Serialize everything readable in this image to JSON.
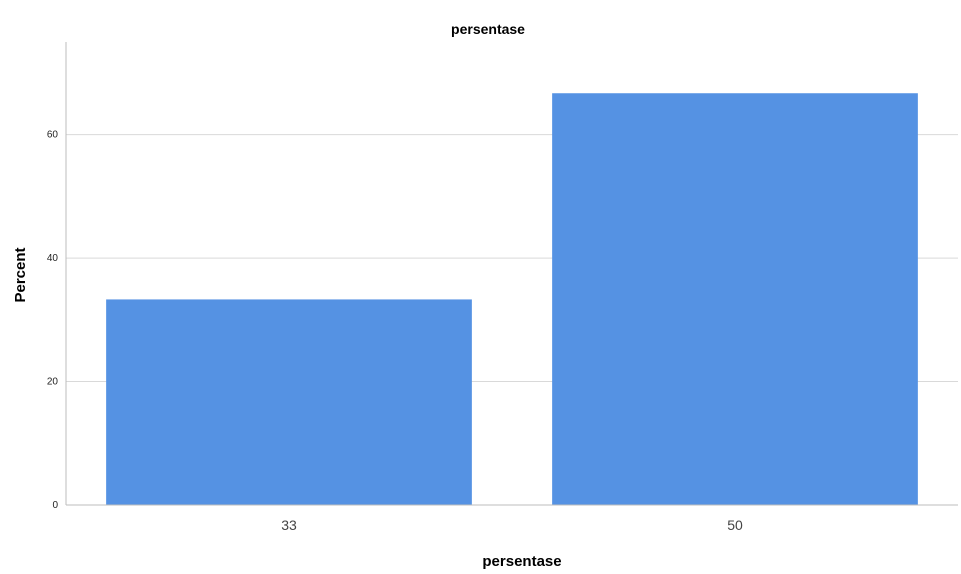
{
  "chart_data": {
    "type": "bar",
    "title": "persentase",
    "xlabel": "persentase",
    "ylabel": "Percent",
    "categories": [
      "33",
      "50"
    ],
    "values": [
      33.3,
      66.7
    ],
    "ylim": [
      0,
      75
    ],
    "yticks": [
      0,
      20,
      40,
      60
    ],
    "grid": true,
    "bar_color": "#5592E3",
    "grid_color": "#d9d9d9",
    "axis_color": "#bdbdbd"
  }
}
